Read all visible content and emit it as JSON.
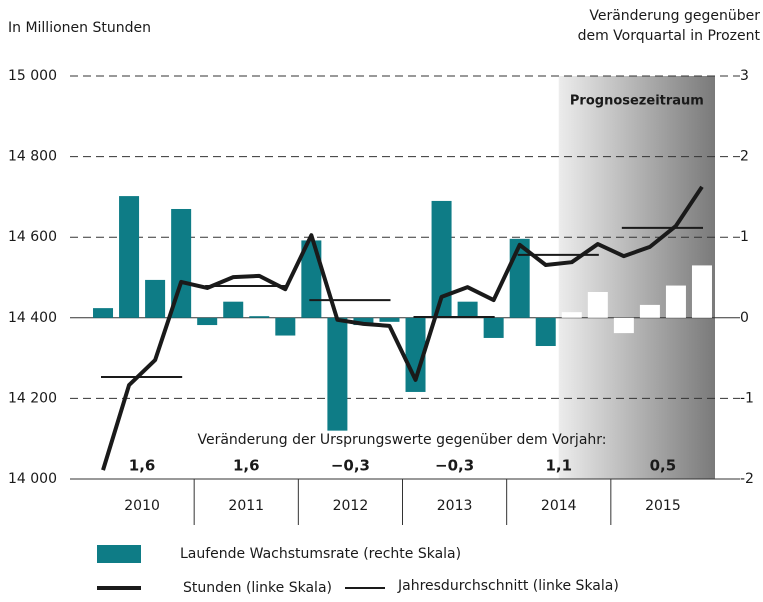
{
  "chart_data": {
    "type": "combo",
    "y_axis_label": "In Millionen Stunden",
    "y2_axis_label": [
      "Veränderung gegenüber",
      "dem Vorquartal in Prozent"
    ],
    "forecast_label": "Prognosezeitraum",
    "forecast_start": 18,
    "annotation": "Veränderung der Ursprungswerte gegenüber dem Vorjahr:",
    "years": [
      "2010",
      "2011",
      "2012",
      "2013",
      "2014",
      "2015"
    ],
    "annual_change": [
      1.6,
      1.6,
      -0.3,
      -0.3,
      1.1,
      0.5
    ],
    "annual_change_labels": [
      "1,6",
      "1,6",
      "−0,3",
      "−0,3",
      "1,1",
      "0,5"
    ],
    "ylim": [
      14000,
      15000
    ],
    "yticks": [
      {
        "value": 14000,
        "label": "14 000"
      },
      {
        "value": 14200,
        "label": "14 200"
      },
      {
        "value": 14400,
        "label": "14 400"
      },
      {
        "value": 14600,
        "label": "14 600"
      },
      {
        "value": 14800,
        "label": "14 800"
      },
      {
        "value": 15000,
        "label": "15 000"
      }
    ],
    "y2lim": [
      -2,
      3
    ],
    "y2ticks": [
      -2,
      -1,
      0,
      1,
      2,
      3
    ],
    "series": [
      {
        "name": "Laufende Wachstumsrate (rechte Skala)",
        "type": "bar",
        "axis": "y2",
        "color": "#0e7c86",
        "forecast_color": "#ffffff",
        "values": [
          0.12,
          1.51,
          0.47,
          1.35,
          -0.09,
          0.2,
          0.02,
          -0.22,
          0.96,
          -1.4,
          -0.09,
          -0.05,
          -0.92,
          1.45,
          0.2,
          -0.25,
          0.98,
          -0.35,
          0.07,
          0.32,
          -0.19,
          0.16,
          0.4,
          0.65
        ]
      },
      {
        "name": "Stunden (linke Skala)",
        "type": "line",
        "color": "#1a1a1a",
        "values": [
          14022,
          14233,
          14295,
          14489,
          14474,
          14501,
          14504,
          14471,
          14605,
          14395,
          14385,
          14380,
          14246,
          14452,
          14476,
          14444,
          14581,
          14531,
          14538,
          14583,
          14553,
          14576,
          14628,
          14725
        ]
      },
      {
        "name": "Jahresdurchschnitt (linke Skala)",
        "type": "average",
        "color": "#1a1a1a",
        "values": [
          14253,
          14479,
          14444,
          14402,
          14556,
          14623
        ]
      }
    ]
  }
}
